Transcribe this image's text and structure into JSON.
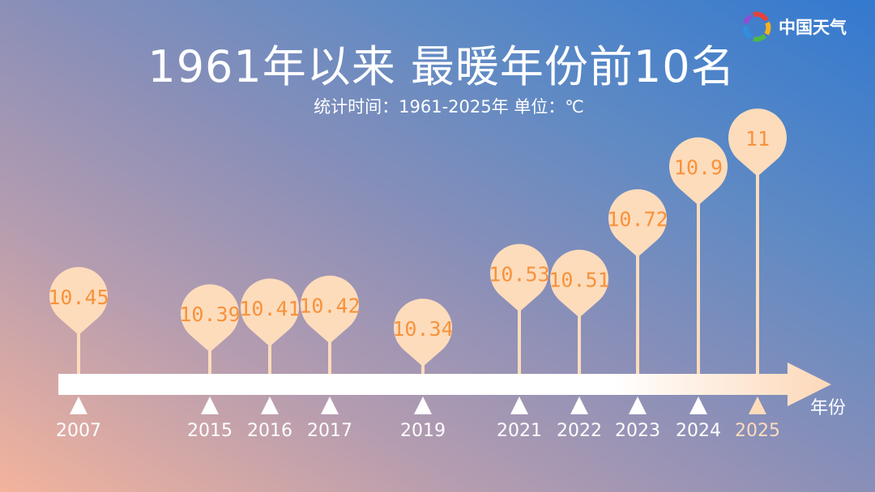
{
  "title": "1961年以来  最暖年份前10名",
  "subtitle": "统计时间：1961-2025年    单位：℃",
  "logo": {
    "text": "中国天气",
    "icon": "colorful-pinwheel-logo"
  },
  "colors": {
    "balloon": "#fddcbc",
    "label": "#f7923c",
    "axis": "#ffffff",
    "highlight": "#fddcbc"
  },
  "chart_data": {
    "type": "timeline-balloon",
    "xlabel": "年份",
    "unit": "℃",
    "categories": [
      "2007",
      "2015",
      "2016",
      "2017",
      "2019",
      "2021",
      "2022",
      "2023",
      "2024",
      "2025"
    ],
    "values": [
      "10.45",
      "10.39",
      "10.41",
      "10.42",
      "10.34",
      "10.53",
      "10.51",
      "10.72",
      "10.9",
      "11"
    ],
    "highlight": "2025"
  }
}
